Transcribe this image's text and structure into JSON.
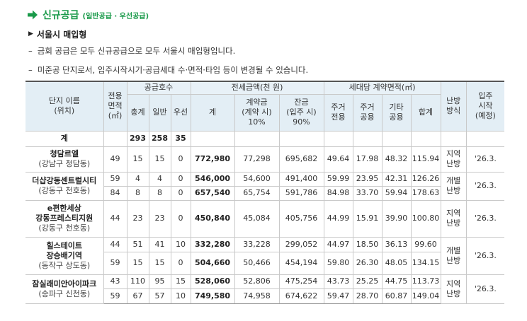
{
  "section": {
    "title": "신규공급",
    "subtitle": "(일반공급 · 우선공급)"
  },
  "subheading": "서울시 매입형",
  "notes": [
    "금회 공급은 모두 신규공급으로 모두 서울시 매입형입니다.",
    "미준공 단지로서, 입주시작시기·공급세대 수·면적·타입 등이 변경될 수 있습니다."
  ],
  "table": {
    "headers": {
      "complex": "단지 이름",
      "complex_sub": "(위치)",
      "area": "전용",
      "area2": "면적",
      "area3": "(㎡)",
      "supply_group": "공급호수",
      "supply_total": "총계",
      "supply_general": "일반",
      "supply_priority": "우선",
      "price_group": "전세금액(천 원)",
      "price_total": "계",
      "deposit_1": "계약금",
      "deposit_2": "(계약 시)",
      "deposit_3": "10%",
      "balance_1": "잔금",
      "balance_2": "(입주 시)",
      "balance_3": "90%",
      "area_group": "세대당 계약면적(㎡)",
      "res_private_1": "주거",
      "res_private_2": "전용",
      "res_common_1": "주거",
      "res_common_2": "공용",
      "other_common_1": "기타",
      "other_common_2": "공용",
      "area_sum": "합계",
      "heating_1": "난방",
      "heating_2": "방식",
      "movein_1": "입주",
      "movein_2": "시작",
      "movein_3": "(예정)"
    },
    "total_row": {
      "label": "계",
      "total": "293",
      "general": "258",
      "priority": "35"
    },
    "rows": [
      {
        "name": "청담르엘",
        "loc": "(강남구 청담동)",
        "area": "49",
        "total": "15",
        "general": "15",
        "priority": "0",
        "price": "772,980",
        "deposit": "77,298",
        "balance": "695,682",
        "rp": "49.64",
        "rc": "17.98",
        "oc": "48.32",
        "sum": "115.94",
        "heat1": "지역",
        "heat2": "난방",
        "movein": "'26.3."
      },
      {
        "name": "더샵강동센트럴시티",
        "loc": "(강동구 천호동)",
        "area": "59",
        "total": "4",
        "general": "4",
        "priority": "0",
        "price": "546,000",
        "deposit": "54,600",
        "balance": "491,400",
        "rp": "59.99",
        "rc": "23.95",
        "oc": "42.31",
        "sum": "126.26",
        "heat1": "개별",
        "heat2": "난방",
        "movein": "'26.3."
      },
      {
        "area": "84",
        "total": "8",
        "general": "8",
        "priority": "0",
        "price": "657,540",
        "deposit": "65,754",
        "balance": "591,786",
        "rp": "84.98",
        "rc": "33.70",
        "oc": "59.94",
        "sum": "178.63"
      },
      {
        "name1": "e편한세상",
        "name2": "강동프레스티지원",
        "loc": "(강동구 천호동)",
        "area": "44",
        "total": "23",
        "general": "23",
        "priority": "0",
        "price": "450,840",
        "deposit": "45,084",
        "balance": "405,756",
        "rp": "44.99",
        "rc": "15.91",
        "oc": "39.90",
        "sum": "100.80",
        "heat1": "지역",
        "heat2": "난방",
        "movein": "'26.3."
      },
      {
        "name1": "힐스테이트",
        "name2": "장승배기역",
        "loc": "(동작구 상도동)",
        "area": "44",
        "total": "51",
        "general": "41",
        "priority": "10",
        "price": "332,280",
        "deposit": "33,228",
        "balance": "299,052",
        "rp": "44.97",
        "rc": "18.50",
        "oc": "36.13",
        "sum": "99.60",
        "heat1": "개별",
        "heat2": "난방",
        "movein": "'26.3."
      },
      {
        "area": "59",
        "total": "15",
        "general": "15",
        "priority": "0",
        "price": "504,660",
        "deposit": "50,466",
        "balance": "454,194",
        "rp": "59.80",
        "rc": "26.30",
        "oc": "48.05",
        "sum": "134.15"
      },
      {
        "name": "잠실래미안아이파크",
        "loc": "(송파구 신천동)",
        "area": "43",
        "total": "110",
        "general": "95",
        "priority": "15",
        "price": "528,060",
        "deposit": "52,806",
        "balance": "475,254",
        "rp": "43.73",
        "rc": "25.25",
        "oc": "44.75",
        "sum": "113.73",
        "heat1": "지역",
        "heat2": "난방",
        "movein": "'26.3."
      },
      {
        "area": "59",
        "total": "67",
        "general": "57",
        "priority": "10",
        "price": "749,580",
        "deposit": "74,958",
        "balance": "674,622",
        "rp": "59.47",
        "rc": "28.70",
        "oc": "60.87",
        "sum": "149.04"
      }
    ]
  },
  "colors": {
    "accent_green": "#1a9a4a",
    "header_bg": "#e3eef5"
  }
}
